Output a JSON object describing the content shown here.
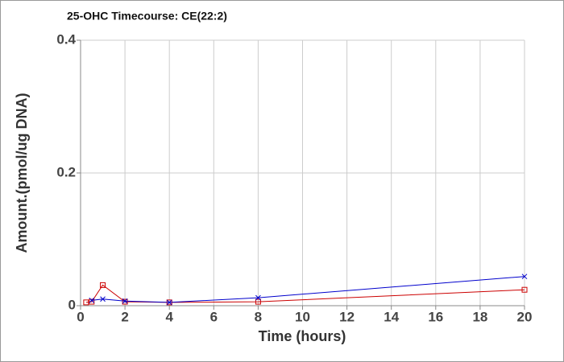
{
  "chart_data": {
    "type": "line",
    "title": "25-OHC Timecourse: CE(22:2)",
    "x_label": "Time (hours)",
    "y_label": "Amount.(pmol/ug DNA)",
    "xlim": [
      0,
      20
    ],
    "xticks": [
      0,
      2,
      4,
      6,
      8,
      10,
      12,
      14,
      16,
      18,
      20
    ],
    "ylim": [
      0,
      0.4
    ],
    "yticks": [
      0,
      0.2,
      0.4
    ],
    "grid": true,
    "series": [
      {
        "color": "#cc0000",
        "marker": "square",
        "x": [
          0.25,
          0.5,
          1,
          2,
          4,
          8,
          20
        ],
        "values": [
          0.005,
          0.006,
          0.031,
          0.006,
          0.005,
          0.006,
          0.024
        ]
      },
      {
        "color": "#0000cc",
        "marker": "cross",
        "x": [
          0.5,
          1,
          2,
          4,
          8,
          20
        ],
        "values": [
          0.008,
          0.01,
          0.007,
          0.005,
          0.012,
          0.044
        ]
      }
    ]
  }
}
